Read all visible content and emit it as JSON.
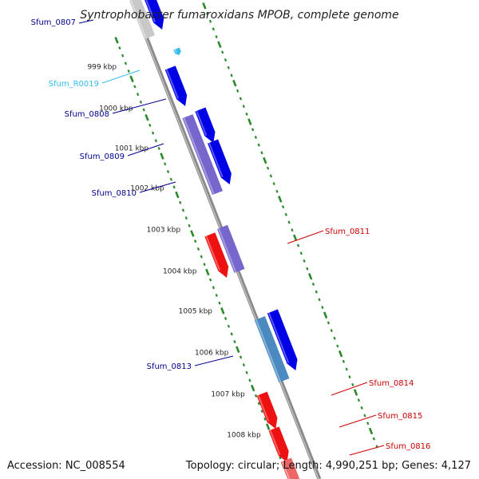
{
  "title": "Syntrophobacter fumaroxidans MPOB, complete genome",
  "footer": {
    "accession": "Accession: NC_008554",
    "topology": "Topology: circular; Length: 4,990,251 bp; Genes: 4,127"
  },
  "colors": {
    "backbone": "#8a8a8a",
    "tick": "#2a8a2a",
    "forward_cds": "#0000e6",
    "reverse_cds": "#ee1111",
    "other_gene": "#7766cc",
    "rna": "#33bbee",
    "pseudo": "#4a8ac0",
    "label_forward": "#00008b",
    "label_reverse": "#cc0000",
    "label_rna": "#33bbee"
  },
  "kbp_labels": [
    "999 kbp",
    "1000 kbp",
    "1001 kbp",
    "1002 kbp",
    "1003 kbp",
    "1004 kbp",
    "1005 kbp",
    "1006 kbp",
    "1007 kbp",
    "1008 kbp"
  ],
  "gene_labels": [
    {
      "text": "Sfum_0807",
      "side": "left",
      "kind": "forward"
    },
    {
      "text": "Sfum_R0019",
      "side": "left",
      "kind": "rna"
    },
    {
      "text": "Sfum_0808",
      "side": "left",
      "kind": "forward"
    },
    {
      "text": "Sfum_0809",
      "side": "left",
      "kind": "forward"
    },
    {
      "text": "Sfum_0810",
      "side": "left",
      "kind": "forward"
    },
    {
      "text": "Sfum_0811",
      "side": "right",
      "kind": "reverse"
    },
    {
      "text": "Sfum_0813",
      "side": "left",
      "kind": "forward"
    },
    {
      "text": "Sfum_0814",
      "side": "right",
      "kind": "reverse"
    },
    {
      "text": "Sfum_0815",
      "side": "right",
      "kind": "reverse"
    },
    {
      "text": "Sfum_0816",
      "side": "right",
      "kind": "reverse"
    }
  ]
}
